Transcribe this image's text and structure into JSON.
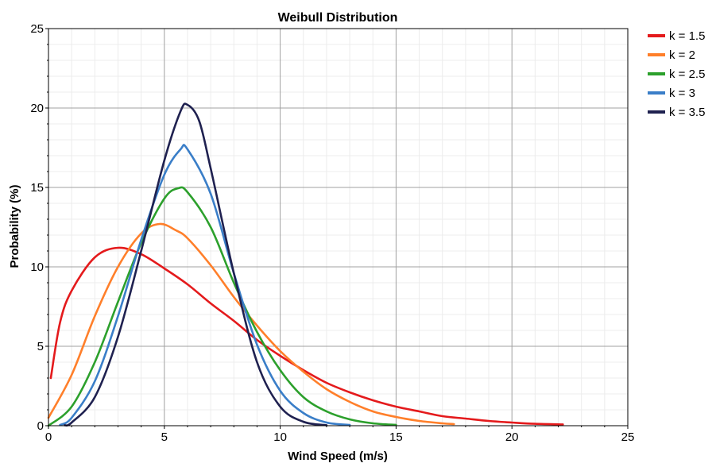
{
  "chart_data": {
    "type": "line",
    "title": "Weibull Distribution",
    "xlabel": "Wind Speed (m/s)",
    "ylabel": "Probability (%)",
    "xlim": [
      0,
      25
    ],
    "ylim": [
      0,
      25
    ],
    "x_ticks": [
      0,
      5,
      10,
      15,
      20,
      25
    ],
    "y_ticks": [
      0,
      5,
      10,
      15,
      20,
      25
    ],
    "grid": true,
    "legend_position": "right",
    "series": [
      {
        "name": "k = 1.5",
        "color": "#e41a1c",
        "x": [
          0.1,
          0.5,
          1,
          2,
          3,
          4,
          5,
          6,
          7,
          8,
          9,
          10,
          11,
          12,
          13,
          14,
          15,
          16,
          17,
          18,
          19,
          20,
          21,
          22.2
        ],
        "y": [
          3.0,
          6.5,
          8.5,
          10.6,
          11.2,
          10.8,
          9.9,
          8.9,
          7.7,
          6.6,
          5.4,
          4.4,
          3.5,
          2.7,
          2.1,
          1.6,
          1.2,
          0.9,
          0.6,
          0.45,
          0.3,
          0.2,
          0.12,
          0.08
        ]
      },
      {
        "name": "k = 2",
        "color": "#ff7f2a",
        "x": [
          0,
          1,
          2,
          3,
          4,
          4.8,
          5.5,
          6,
          7,
          8,
          9,
          10,
          11,
          12,
          13,
          14,
          15,
          16,
          17,
          17.5
        ],
        "y": [
          0.5,
          3.2,
          6.9,
          10.0,
          12.1,
          12.7,
          12.3,
          11.8,
          10.1,
          8.1,
          6.3,
          4.7,
          3.4,
          2.3,
          1.5,
          0.9,
          0.55,
          0.3,
          0.15,
          0.1
        ]
      },
      {
        "name": "k = 2.5",
        "color": "#2ca02c",
        "x": [
          0,
          1,
          2,
          3,
          4,
          5,
          5.6,
          6,
          7,
          8,
          9,
          10,
          11,
          12,
          13,
          14,
          15
        ],
        "y": [
          0,
          1.2,
          4.0,
          7.8,
          11.5,
          14.3,
          14.95,
          14.7,
          12.5,
          9.0,
          5.9,
          3.5,
          1.8,
          0.9,
          0.4,
          0.15,
          0.05
        ]
      },
      {
        "name": "k = 3",
        "color": "#3a7ec8",
        "x": [
          0.5,
          1,
          2,
          3,
          4,
          5,
          5.7,
          6,
          7,
          8,
          9,
          10,
          11,
          12,
          13
        ],
        "y": [
          0.05,
          0.5,
          2.8,
          6.9,
          11.7,
          15.8,
          17.4,
          17.4,
          14.6,
          9.6,
          5.1,
          2.2,
          0.8,
          0.2,
          0.05
        ]
      },
      {
        "name": "k = 3.5",
        "color": "#1f2150",
        "x": [
          0.7,
          1,
          2,
          3,
          4,
          5,
          5.7,
          6,
          6.5,
          7,
          8,
          9,
          10,
          11,
          12
        ],
        "y": [
          0.03,
          0.2,
          1.8,
          5.6,
          11.0,
          16.7,
          19.8,
          20.2,
          19.2,
          16.2,
          9.6,
          4.0,
          1.2,
          0.25,
          0.03
        ]
      }
    ]
  }
}
